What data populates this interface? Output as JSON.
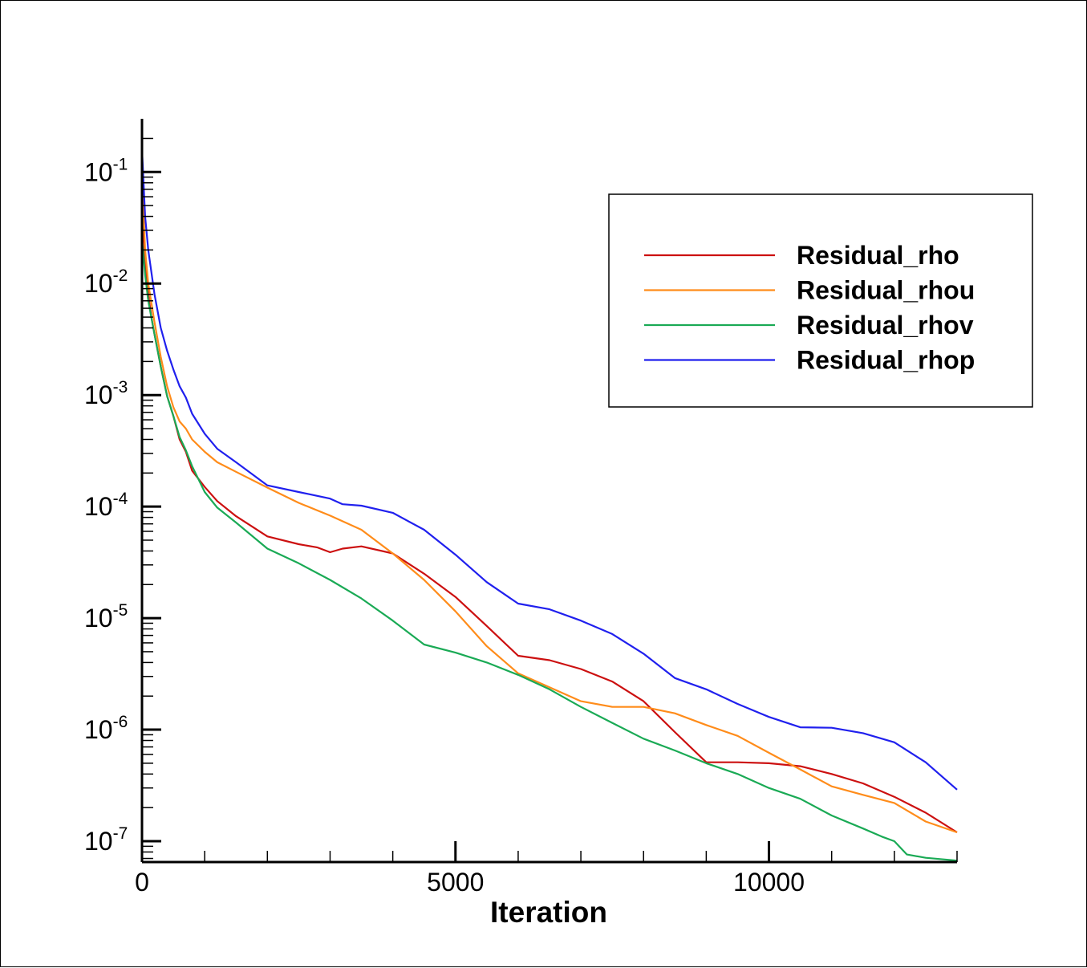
{
  "chart_data": {
    "type": "line",
    "title": "",
    "xlabel": "Iteration",
    "ylabel": "",
    "xlim": [
      0,
      13000
    ],
    "ylim": [
      6.5e-08,
      0.3
    ],
    "yscale": "log",
    "grid": false,
    "legend_position": "top-right",
    "x_ticks": [
      0,
      5000,
      10000
    ],
    "x_tick_labels": [
      "0",
      "5000",
      "10000"
    ],
    "y_ticks": [
      {
        "value": 0.1,
        "base": "10",
        "exp": "-1"
      },
      {
        "value": 0.01,
        "base": "10",
        "exp": "-2"
      },
      {
        "value": 0.001,
        "base": "10",
        "exp": "-3"
      },
      {
        "value": 0.0001,
        "base": "10",
        "exp": "-4"
      },
      {
        "value": 1e-05,
        "base": "10",
        "exp": "-5"
      },
      {
        "value": 1e-06,
        "base": "10",
        "exp": "-6"
      },
      {
        "value": 1e-07,
        "base": "10",
        "exp": "-7"
      }
    ],
    "series": [
      {
        "name": "Residual_rho",
        "color": "#cc1010",
        "points": [
          [
            0,
            0.06
          ],
          [
            50,
            0.015
          ],
          [
            100,
            0.008
          ],
          [
            150,
            0.005
          ],
          [
            200,
            0.0035
          ],
          [
            300,
            0.0018
          ],
          [
            400,
            0.00098
          ],
          [
            500,
            0.00065
          ],
          [
            600,
            0.0004
          ],
          [
            700,
            0.00031
          ],
          [
            800,
            0.00021
          ],
          [
            1000,
            0.00015
          ],
          [
            1200,
            0.000112
          ],
          [
            1500,
            8.2e-05
          ],
          [
            2000,
            5.4e-05
          ],
          [
            2500,
            4.6e-05
          ],
          [
            2800,
            4.3e-05
          ],
          [
            3000,
            3.9e-05
          ],
          [
            3200,
            4.2e-05
          ],
          [
            3500,
            4.4e-05
          ],
          [
            4000,
            3.8e-05
          ],
          [
            4500,
            2.5e-05
          ],
          [
            5000,
            1.55e-05
          ],
          [
            5500,
            8.5e-06
          ],
          [
            6000,
            4.6e-06
          ],
          [
            6500,
            4.2e-06
          ],
          [
            7000,
            3.5e-06
          ],
          [
            7500,
            2.7e-06
          ],
          [
            8000,
            1.8e-06
          ],
          [
            8500,
            9.5e-07
          ],
          [
            9000,
            5.1e-07
          ],
          [
            9500,
            5.1e-07
          ],
          [
            10000,
            5e-07
          ],
          [
            10500,
            4.7e-07
          ],
          [
            11000,
            4e-07
          ],
          [
            11500,
            3.3e-07
          ],
          [
            12000,
            2.5e-07
          ],
          [
            12500,
            1.8e-07
          ],
          [
            13000,
            1.2e-07
          ]
        ]
      },
      {
        "name": "Residual_rhou",
        "color": "#ff8c1a",
        "points": [
          [
            0,
            0.09
          ],
          [
            50,
            0.02
          ],
          [
            100,
            0.01
          ],
          [
            200,
            0.0045
          ],
          [
            300,
            0.0022
          ],
          [
            400,
            0.0012
          ],
          [
            500,
            0.00078
          ],
          [
            600,
            0.00058
          ],
          [
            700,
            0.0005
          ],
          [
            800,
            0.0004
          ],
          [
            1000,
            0.00031
          ],
          [
            1200,
            0.00025
          ],
          [
            1500,
            0.000205
          ],
          [
            2000,
            0.000148
          ],
          [
            2500,
            0.000108
          ],
          [
            3000,
            8.3e-05
          ],
          [
            3500,
            6.2e-05
          ],
          [
            4000,
            3.8e-05
          ],
          [
            4500,
            2.2e-05
          ],
          [
            5000,
            1.15e-05
          ],
          [
            5500,
            5.6e-06
          ],
          [
            6000,
            3.2e-06
          ],
          [
            6500,
            2.4e-06
          ],
          [
            7000,
            1.8e-06
          ],
          [
            7500,
            1.6e-06
          ],
          [
            8000,
            1.6e-06
          ],
          [
            8500,
            1.4e-06
          ],
          [
            9000,
            1.1e-06
          ],
          [
            9500,
            8.8e-07
          ],
          [
            10000,
            6.2e-07
          ],
          [
            10500,
            4.4e-07
          ],
          [
            11000,
            3.1e-07
          ],
          [
            11500,
            2.6e-07
          ],
          [
            12000,
            2.2e-07
          ],
          [
            12500,
            1.5e-07
          ],
          [
            13000,
            1.2e-07
          ]
        ]
      },
      {
        "name": "Residual_rhov",
        "color": "#1aaa55",
        "points": [
          [
            0,
            0.025
          ],
          [
            50,
            0.012
          ],
          [
            100,
            0.007
          ],
          [
            200,
            0.0035
          ],
          [
            300,
            0.0018
          ],
          [
            400,
            0.00098
          ],
          [
            500,
            0.00065
          ],
          [
            600,
            0.00042
          ],
          [
            700,
            0.00032
          ],
          [
            800,
            0.00023
          ],
          [
            1000,
            0.000135
          ],
          [
            1200,
            9.8e-05
          ],
          [
            1500,
            7.2e-05
          ],
          [
            2000,
            4.2e-05
          ],
          [
            2500,
            3.1e-05
          ],
          [
            3000,
            2.2e-05
          ],
          [
            3500,
            1.5e-05
          ],
          [
            4000,
            9.5e-06
          ],
          [
            4500,
            5.8e-06
          ],
          [
            5000,
            4.9e-06
          ],
          [
            5500,
            4e-06
          ],
          [
            6000,
            3.1e-06
          ],
          [
            6500,
            2.3e-06
          ],
          [
            7000,
            1.6e-06
          ],
          [
            7500,
            1.15e-06
          ],
          [
            8000,
            8.3e-07
          ],
          [
            8500,
            6.5e-07
          ],
          [
            9000,
            5e-07
          ],
          [
            9500,
            4e-07
          ],
          [
            10000,
            3e-07
          ],
          [
            10500,
            2.4e-07
          ],
          [
            11000,
            1.7e-07
          ],
          [
            11500,
            1.3e-07
          ],
          [
            11800,
            1.1e-07
          ],
          [
            12000,
            1e-07
          ],
          [
            12200,
            7.6e-08
          ],
          [
            12500,
            7.1e-08
          ],
          [
            13000,
            6.7e-08
          ]
        ]
      },
      {
        "name": "Residual_rhop",
        "color": "#2020ee",
        "points": [
          [
            0,
            0.16
          ],
          [
            50,
            0.04
          ],
          [
            100,
            0.02
          ],
          [
            200,
            0.008
          ],
          [
            300,
            0.004
          ],
          [
            400,
            0.0025
          ],
          [
            500,
            0.0017
          ],
          [
            600,
            0.0012
          ],
          [
            700,
            0.00095
          ],
          [
            800,
            0.00068
          ],
          [
            1000,
            0.00045
          ],
          [
            1200,
            0.00033
          ],
          [
            1500,
            0.00025
          ],
          [
            2000,
            0.000155
          ],
          [
            2500,
            0.000135
          ],
          [
            3000,
            0.000118
          ],
          [
            3200,
            0.000105
          ],
          [
            3500,
            0.000102
          ],
          [
            4000,
            8.8e-05
          ],
          [
            4500,
            6.2e-05
          ],
          [
            5000,
            3.7e-05
          ],
          [
            5500,
            2.1e-05
          ],
          [
            6000,
            1.35e-05
          ],
          [
            6500,
            1.2e-05
          ],
          [
            7000,
            9.5e-06
          ],
          [
            7500,
            7.2e-06
          ],
          [
            8000,
            4.8e-06
          ],
          [
            8500,
            2.9e-06
          ],
          [
            9000,
            2.3e-06
          ],
          [
            9500,
            1.7e-06
          ],
          [
            10000,
            1.3e-06
          ],
          [
            10500,
            1.05e-06
          ],
          [
            11000,
            1.04e-06
          ],
          [
            11500,
            9.3e-07
          ],
          [
            12000,
            7.7e-07
          ],
          [
            12500,
            5.1e-07
          ],
          [
            13000,
            2.9e-07
          ]
        ]
      }
    ]
  }
}
